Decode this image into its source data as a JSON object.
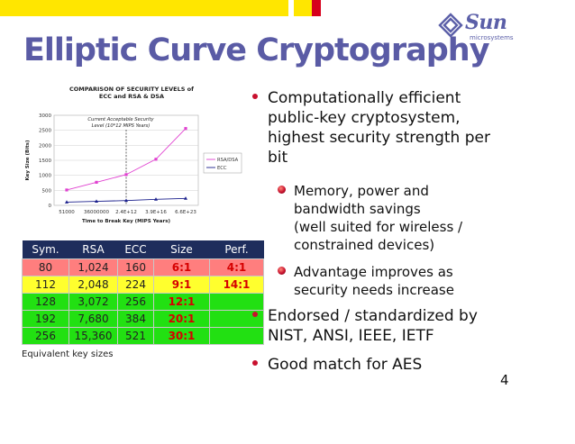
{
  "slide": {
    "title": "Elliptic Curve Cryptography",
    "page_number": "4"
  },
  "logo": {
    "word": "Sun",
    "sub": "microsystems"
  },
  "chart_data": {
    "type": "line",
    "title": "COMPARISON OF SECURITY LEVELS of ECC and RSA & DSA",
    "xlabel": "Time to Break Key (MIPS Years)",
    "ylabel": "Key Size (Bits)",
    "categories": [
      "51000",
      "36000000",
      "2.4E+12",
      "3.9E+16",
      "6.6E+23"
    ],
    "ylim": [
      0,
      3000
    ],
    "yticks": [
      "0",
      "500",
      "1000",
      "1500",
      "2000",
      "2500",
      "3000"
    ],
    "series": [
      {
        "name": "RSA/DSA",
        "values": [
          512,
          768,
          1024,
          1536,
          2560
        ],
        "color": "#e040d0"
      },
      {
        "name": "ECC",
        "values": [
          106,
          132,
          160,
          200,
          230
        ],
        "color": "#1a1f8c"
      }
    ],
    "annotation": "Current Acceptable Security Level (10*12 MIPS Years)",
    "legend_position": "right",
    "grid": true
  },
  "table": {
    "headers": [
      "Sym.",
      "RSA",
      "ECC",
      "Size",
      "Perf."
    ],
    "rows": [
      [
        "80",
        "1,024",
        "160",
        "6:1",
        "4:1"
      ],
      [
        "112",
        "2,048",
        "224",
        "9:1",
        "14:1"
      ],
      [
        "128",
        "3,072",
        "256",
        "12:1",
        ""
      ],
      [
        "192",
        "7,680",
        "384",
        "20:1",
        ""
      ],
      [
        "256",
        "15,360",
        "521",
        "30:1",
        ""
      ]
    ],
    "caption": "Equivalent key sizes"
  },
  "bullets": {
    "b1": [
      "Computationally  efficient",
      "public-key cryptosystem,",
      "highest security strength per",
      "bit"
    ],
    "b1_sub1": [
      "Memory, power and",
      "bandwidth savings",
      "(well suited for wireless /",
      "constrained devices)"
    ],
    "b1_sub2": [
      "Advantage improves as",
      "security needs increase"
    ],
    "b2": [
      "Endorsed / standardized by",
      "NIST, ANSI, IEEE, IETF"
    ],
    "b3": [
      "Good match for AES"
    ]
  }
}
